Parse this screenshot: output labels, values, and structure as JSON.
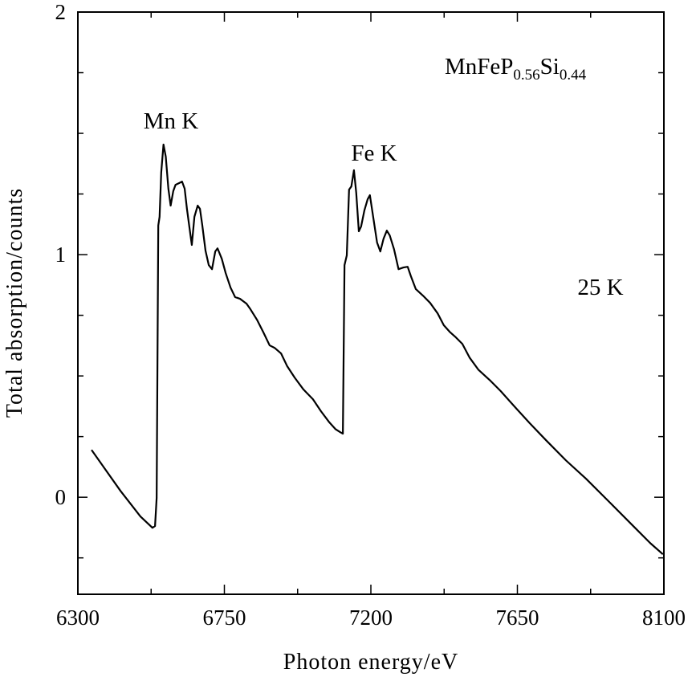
{
  "chart_data": {
    "type": "line",
    "xlabel": "Photon energy/eV",
    "ylabel": "Total absorption/counts",
    "annotations": [
      "Mn K",
      "Fe K",
      "25 K"
    ],
    "formula": [
      "MnFeP",
      "0.56",
      "Si",
      "0.44"
    ],
    "xlim": [
      6300,
      8100
    ],
    "xticks": [
      6300,
      6750,
      7200,
      7650,
      8100
    ],
    "minor_xticks": [
      6525,
      6975,
      7425,
      7875
    ],
    "ylim": [
      -0.4,
      2
    ],
    "yticks": [
      0,
      1,
      2
    ],
    "minor_yticks": [
      -0.25,
      0.25,
      0.5,
      0.75,
      1.25,
      1.5,
      1.75
    ],
    "color": "#000000",
    "x": [
      6342,
      6431,
      6492,
      6529,
      6537,
      6542,
      6547,
      6551,
      6556,
      6563,
      6570,
      6578,
      6585,
      6593,
      6600,
      6611,
      6620,
      6628,
      6635,
      6645,
      6650,
      6658,
      6668,
      6675,
      6682,
      6692,
      6702,
      6712,
      6722,
      6729,
      6742,
      6754,
      6769,
      6783,
      6798,
      6808,
      6818,
      6830,
      6850,
      6870,
      6889,
      6904,
      6924,
      6943,
      6966,
      6993,
      7022,
      7047,
      7071,
      7091,
      7106,
      7114,
      7119,
      7126,
      7133,
      7140,
      7148,
      7155,
      7163,
      7170,
      7180,
      7190,
      7197,
      7207,
      7219,
      7229,
      7239,
      7249,
      7258,
      7271,
      7285,
      7300,
      7313,
      7323,
      7338,
      7360,
      7382,
      7405,
      7424,
      7442,
      7461,
      7481,
      7503,
      7530,
      7565,
      7599,
      7639,
      7688,
      7738,
      7799,
      7861,
      7935,
      8009,
      8058,
      8097
    ],
    "values": [
      0.195,
      0.026,
      -0.079,
      -0.126,
      -0.119,
      -0.003,
      1.12,
      1.156,
      1.338,
      1.454,
      1.404,
      1.272,
      1.202,
      1.262,
      1.288,
      1.295,
      1.301,
      1.272,
      1.189,
      1.089,
      1.04,
      1.156,
      1.202,
      1.189,
      1.123,
      1.017,
      0.957,
      0.94,
      1.013,
      1.026,
      0.983,
      0.924,
      0.864,
      0.825,
      0.818,
      0.808,
      0.798,
      0.775,
      0.732,
      0.679,
      0.626,
      0.616,
      0.593,
      0.54,
      0.493,
      0.444,
      0.404,
      0.354,
      0.311,
      0.281,
      0.268,
      0.262,
      0.957,
      0.997,
      1.268,
      1.281,
      1.348,
      1.255,
      1.096,
      1.116,
      1.182,
      1.228,
      1.245,
      1.156,
      1.05,
      1.013,
      1.066,
      1.099,
      1.079,
      1.023,
      0.94,
      0.947,
      0.95,
      0.911,
      0.858,
      0.831,
      0.801,
      0.758,
      0.709,
      0.682,
      0.659,
      0.632,
      0.576,
      0.526,
      0.483,
      0.437,
      0.377,
      0.305,
      0.235,
      0.152,
      0.076,
      -0.023,
      -0.123,
      -0.189,
      -0.235
    ]
  }
}
